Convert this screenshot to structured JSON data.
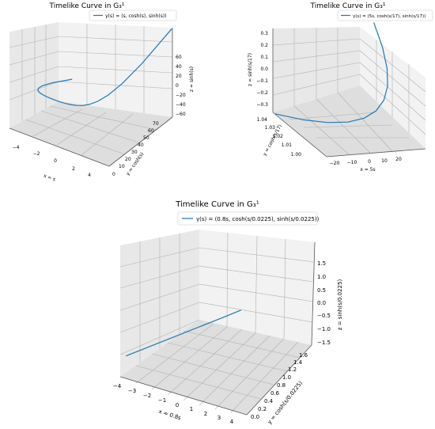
{
  "chart_data": [
    {
      "type": "line",
      "title": "Timelike Curve in G₃¹",
      "legend": {
        "entries": [
          "γ(s) = (s, cosh(s), sinh(s))"
        ],
        "placement": "top-right"
      },
      "xlabel": "x = s",
      "ylabel": "y = cosh(s)",
      "zlabel": "z = sinh(s)",
      "xticks": [
        "−4",
        "−2",
        "0",
        "2",
        "4"
      ],
      "yticks": [
        "0",
        "10",
        "20",
        "30",
        "40",
        "50",
        "60",
        "70"
      ],
      "zticks": [
        "−60",
        "−40",
        "−20",
        "0",
        "20",
        "40",
        "60"
      ],
      "xlim": [
        -5,
        5
      ],
      "ylim": [
        0,
        75
      ],
      "zlim": [
        -75,
        75
      ],
      "grid": true,
      "series": [
        {
          "label": "γ(s) = (s, cosh(s), sinh(s))",
          "x": [
            -5,
            -4.5,
            -4,
            -3.5,
            -3,
            -2.5,
            -2,
            -1.5,
            -1,
            -0.5,
            0,
            0.5,
            1,
            1.5,
            2,
            2.5,
            3,
            3.5,
            4,
            4.5,
            5
          ],
          "y": [
            74.21,
            45.01,
            27.31,
            16.57,
            10.07,
            6.13,
            3.76,
            2.35,
            1.54,
            1.13,
            1,
            1.13,
            1.54,
            2.35,
            3.76,
            6.13,
            10.07,
            16.57,
            27.31,
            45.01,
            74.21
          ],
          "z": [
            -74.2,
            -45.0,
            -27.29,
            -16.54,
            -10.02,
            -6.05,
            -3.63,
            -2.13,
            -1.18,
            -0.52,
            0,
            0.52,
            1.18,
            2.13,
            3.63,
            6.05,
            10.02,
            16.54,
            27.29,
            45.0,
            74.2
          ]
        }
      ]
    },
    {
      "type": "line",
      "title": "Timelike Curve in G₃¹",
      "legend": {
        "entries": [
          "γ(s) = (5s, cosh(s/17), sinh(s/17))"
        ],
        "placement": "top-right"
      },
      "xlabel": "x = 5s",
      "ylabel": "y = cosh(s/17)",
      "zlabel": "z = sinh(s/17)",
      "xticks": [
        "−20",
        "−10",
        "0",
        "10",
        "20"
      ],
      "yticks": [
        "1.00",
        "1.01",
        "1.02",
        "1.03",
        "1.04"
      ],
      "zticks": [
        "−0.3",
        "−0.2",
        "−0.1",
        "0.0",
        "0.1",
        "0.2",
        "0.3"
      ],
      "xlim": [
        -25,
        25
      ],
      "ylim": [
        1.0,
        1.045
      ],
      "zlim": [
        -0.3,
        0.3
      ],
      "grid": true,
      "series": [
        {
          "label": "γ(s) = (5s, cosh(s/17), sinh(s/17))",
          "x": [
            -25,
            -20,
            -15,
            -10,
            -5,
            0,
            5,
            10,
            15,
            20,
            25
          ],
          "y": [
            1.0433,
            1.0277,
            1.0156,
            1.0069,
            1.0017,
            1.0,
            1.0017,
            1.0069,
            1.0156,
            1.0277,
            1.0433
          ],
          "z": [
            -0.2984,
            -0.2369,
            -0.1769,
            -0.1179,
            -0.0589,
            0.0,
            0.0589,
            0.1179,
            0.1769,
            0.2369,
            0.2984
          ]
        }
      ]
    },
    {
      "type": "line",
      "title": "Timelike Curve in G₃¹",
      "legend": {
        "entries": [
          "γ(s) = (0.8s, cosh(s/0.0225), sinh(s/0.0225))"
        ],
        "placement": "top"
      },
      "xlabel": "x = 0.8s",
      "ylabel": "y = cosh(s/0.0225)",
      "zlabel": "z = sinh(s/0.0225)",
      "xticks": [
        "−4",
        "−3",
        "−2",
        "−1",
        "0",
        "1",
        "2",
        "3",
        "4"
      ],
      "yticks": [
        "0.0",
        "0.2",
        "0.4",
        "0.6",
        "0.8",
        "1.0",
        "1.2",
        "1.4",
        "1.6"
      ],
      "zticks": [
        "−1.5",
        "−1.0",
        "−0.5",
        "0.0",
        "0.5",
        "1.0",
        "1.5"
      ],
      "xlim": [
        -4.4,
        4.4
      ],
      "ylim": [
        0,
        1.65
      ],
      "zlim": [
        -1.6,
        1.6
      ],
      "grid": true,
      "series": [
        {
          "label": "γ(s) = (0.8s, cosh(s/0.0225), sinh(s/0.0225))",
          "x": [
            -4,
            0,
            4
          ],
          "y": [
            0,
            1,
            0
          ],
          "z": [
            -0.9,
            -0.48,
            1.6
          ]
        }
      ]
    }
  ]
}
